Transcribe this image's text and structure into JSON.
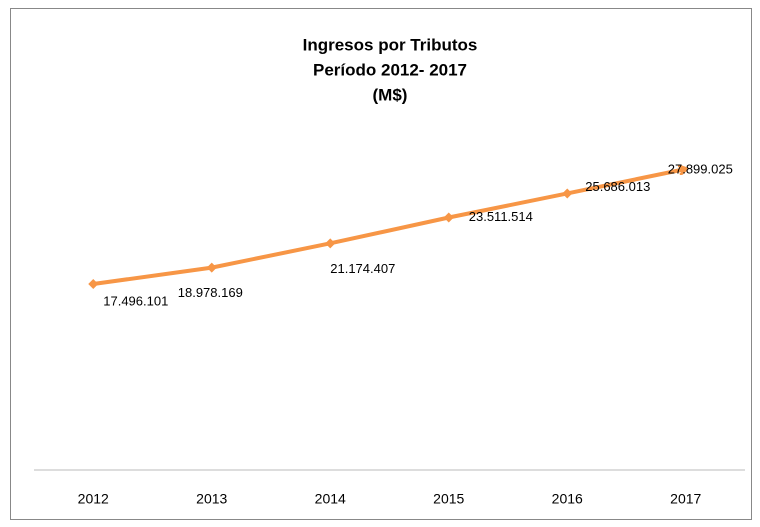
{
  "chart_data": {
    "type": "line",
    "title": [
      "Ingresos por Tributos",
      "Período 2012- 2017",
      "(M$)"
    ],
    "categories": [
      "2012",
      "2013",
      "2014",
      "2015",
      "2016",
      "2017"
    ],
    "values": [
      17496101,
      18978169,
      21174407,
      23511514,
      25686013,
      27899025
    ],
    "value_labels": [
      "17.496.101",
      "18.978.169",
      "21.174.407",
      "23.511.514",
      "25.686.013",
      "27.899.025"
    ],
    "color": "#f79646"
  }
}
